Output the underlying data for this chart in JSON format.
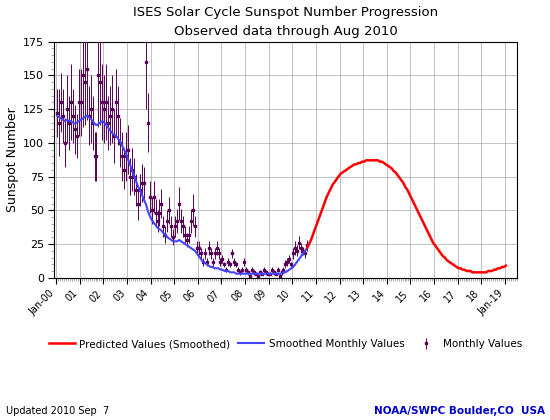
{
  "title": "ISES Solar Cycle Sunspot Number Progression",
  "subtitle": "Observed data through Aug 2010",
  "ylabel": "Sunspot Number",
  "footer_left": "Updated 2010 Sep  7",
  "footer_right": "NOAA/SWPC Boulder,CO  USA",
  "ylim": [
    0,
    175
  ],
  "yticks": [
    0,
    25,
    50,
    75,
    100,
    125,
    150,
    175
  ],
  "xlim": [
    1999.92,
    2019.5
  ],
  "background_color": "#ffffff",
  "smoothed_color": "#4444ff",
  "monthly_color": "#550055",
  "predicted_color": "#ff0000",
  "legend_entries": [
    "Smoothed Monthly Values",
    "Monthly Values",
    "Predicted Values (Smoothed)"
  ],
  "monthly_dates": [
    2000.042,
    2000.125,
    2000.208,
    2000.292,
    2000.375,
    2000.458,
    2000.542,
    2000.625,
    2000.708,
    2000.792,
    2000.875,
    2000.958,
    2001.042,
    2001.125,
    2001.208,
    2001.292,
    2001.375,
    2001.458,
    2001.542,
    2001.625,
    2001.708,
    2001.792,
    2001.875,
    2001.958,
    2002.042,
    2002.125,
    2002.208,
    2002.292,
    2002.375,
    2002.458,
    2002.542,
    2002.625,
    2002.708,
    2002.792,
    2002.875,
    2002.958,
    2003.042,
    2003.125,
    2003.208,
    2003.292,
    2003.375,
    2003.458,
    2003.542,
    2003.625,
    2003.708,
    2003.792,
    2003.875,
    2003.958,
    2004.042,
    2004.125,
    2004.208,
    2004.292,
    2004.375,
    2004.458,
    2004.542,
    2004.625,
    2004.708,
    2004.792,
    2004.875,
    2004.958,
    2005.042,
    2005.125,
    2005.208,
    2005.292,
    2005.375,
    2005.458,
    2005.542,
    2005.625,
    2005.708,
    2005.792,
    2005.875,
    2005.958,
    2006.042,
    2006.125,
    2006.208,
    2006.292,
    2006.375,
    2006.458,
    2006.542,
    2006.625,
    2006.708,
    2006.792,
    2006.875,
    2006.958,
    2007.042,
    2007.125,
    2007.208,
    2007.292,
    2007.375,
    2007.458,
    2007.542,
    2007.625,
    2007.708,
    2007.792,
    2007.875,
    2007.958,
    2008.042,
    2008.125,
    2008.208,
    2008.292,
    2008.375,
    2008.458,
    2008.542,
    2008.625,
    2008.708,
    2008.792,
    2008.875,
    2008.958,
    2009.042,
    2009.125,
    2009.208,
    2009.292,
    2009.375,
    2009.458,
    2009.542,
    2009.625,
    2009.708,
    2009.792,
    2009.875,
    2009.958,
    2010.042,
    2010.125,
    2010.208,
    2010.292,
    2010.375,
    2010.458,
    2010.542,
    2010.625
  ],
  "monthly_values": [
    122,
    115,
    130,
    120,
    100,
    125,
    115,
    130,
    120,
    110,
    105,
    130,
    130,
    150,
    145,
    155,
    120,
    125,
    115,
    90,
    90,
    150,
    145,
    130,
    125,
    130,
    115,
    120,
    125,
    105,
    130,
    120,
    100,
    90,
    80,
    90,
    95,
    75,
    80,
    75,
    65,
    55,
    65,
    70,
    70,
    160,
    115,
    60,
    50,
    60,
    48,
    42,
    48,
    55,
    38,
    32,
    42,
    50,
    38,
    30,
    38,
    42,
    55,
    42,
    38,
    32,
    28,
    32,
    42,
    50,
    38,
    22,
    22,
    18,
    12,
    18,
    12,
    22,
    18,
    12,
    18,
    22,
    18,
    12,
    14,
    10,
    6,
    12,
    10,
    18,
    12,
    10,
    6,
    4,
    6,
    12,
    6,
    4,
    1,
    6,
    4,
    3,
    1,
    4,
    3,
    6,
    4,
    3,
    3,
    6,
    4,
    3,
    6,
    1,
    4,
    6,
    10,
    12,
    14,
    10,
    18,
    22,
    20,
    26,
    22,
    20,
    18,
    24
  ],
  "monthly_errors": [
    18,
    25,
    22,
    20,
    18,
    25,
    20,
    28,
    20,
    18,
    16,
    25,
    25,
    38,
    32,
    38,
    22,
    25,
    20,
    18,
    18,
    38,
    32,
    28,
    25,
    28,
    20,
    22,
    25,
    20,
    25,
    22,
    18,
    18,
    14,
    18,
    18,
    14,
    16,
    14,
    12,
    12,
    12,
    14,
    12,
    35,
    22,
    12,
    10,
    12,
    10,
    8,
    10,
    11,
    8,
    6,
    8,
    10,
    8,
    6,
    8,
    9,
    12,
    9,
    8,
    6,
    5,
    6,
    9,
    12,
    8,
    5,
    5,
    4,
    3,
    4,
    3,
    5,
    4,
    3,
    4,
    5,
    4,
    3,
    3,
    2,
    2,
    3,
    2,
    3,
    3,
    2,
    2,
    2,
    2,
    3,
    2,
    2,
    1,
    2,
    2,
    1,
    1,
    2,
    1,
    2,
    2,
    1,
    1,
    2,
    2,
    1,
    2,
    1,
    2,
    2,
    3,
    3,
    3,
    2,
    4,
    5,
    4,
    5,
    4,
    3,
    3,
    4
  ],
  "smoothed_dates": [
    2000.042,
    2000.125,
    2000.208,
    2000.292,
    2000.375,
    2000.458,
    2000.542,
    2000.625,
    2000.708,
    2000.792,
    2000.875,
    2000.958,
    2001.042,
    2001.125,
    2001.208,
    2001.292,
    2001.375,
    2001.458,
    2001.542,
    2001.625,
    2001.708,
    2001.792,
    2001.875,
    2001.958,
    2002.042,
    2002.125,
    2002.208,
    2002.292,
    2002.375,
    2002.458,
    2002.542,
    2002.625,
    2002.708,
    2002.792,
    2002.875,
    2002.958,
    2003.042,
    2003.125,
    2003.208,
    2003.292,
    2003.375,
    2003.458,
    2003.542,
    2003.625,
    2003.708,
    2003.792,
    2003.875,
    2003.958,
    2004.042,
    2004.125,
    2004.208,
    2004.292,
    2004.375,
    2004.458,
    2004.542,
    2004.625,
    2004.708,
    2004.792,
    2004.875,
    2004.958,
    2005.042,
    2005.125,
    2005.208,
    2005.292,
    2005.375,
    2005.458,
    2005.542,
    2005.625,
    2005.708,
    2005.792,
    2005.875,
    2005.958,
    2006.042,
    2006.125,
    2006.208,
    2006.292,
    2006.375,
    2006.458,
    2006.542,
    2006.625,
    2006.708,
    2006.792,
    2006.875,
    2006.958,
    2007.042,
    2007.125,
    2007.208,
    2007.292,
    2007.375,
    2007.458,
    2007.542,
    2007.625,
    2007.708,
    2007.792,
    2007.875,
    2007.958,
    2008.042,
    2008.125,
    2008.208,
    2008.292,
    2008.375,
    2008.458,
    2008.542,
    2008.625,
    2008.708,
    2008.792,
    2008.875,
    2008.958,
    2009.042,
    2009.125,
    2009.208,
    2009.292,
    2009.375,
    2009.458,
    2009.542,
    2009.625,
    2009.708,
    2009.792,
    2009.875,
    2009.958,
    2010.042,
    2010.125,
    2010.208,
    2010.292,
    2010.375,
    2010.458,
    2010.542,
    2010.625
  ],
  "smoothed_values": [
    120,
    119,
    118,
    117,
    116,
    117,
    116,
    116,
    115,
    114,
    115,
    116,
    117,
    118,
    119,
    120,
    119,
    118,
    116,
    114,
    113,
    114,
    115,
    116,
    115,
    113,
    111,
    109,
    107,
    106,
    105,
    103,
    101,
    98,
    95,
    92,
    88,
    84,
    80,
    76,
    72,
    68,
    65,
    62,
    58,
    55,
    50,
    46,
    43,
    41,
    39,
    37,
    36,
    35,
    33,
    32,
    30,
    29,
    28,
    27,
    27,
    27,
    28,
    27,
    26,
    25,
    24,
    23,
    22,
    21,
    20,
    18,
    16,
    14,
    12,
    11,
    10,
    9,
    8,
    8,
    7,
    7,
    7,
    6,
    6,
    5,
    5,
    5,
    4,
    4,
    4,
    3,
    3,
    3,
    3,
    3,
    3,
    3,
    3,
    3,
    3,
    3,
    3,
    3,
    3,
    3,
    3,
    3,
    3,
    3,
    3,
    3,
    3,
    3,
    3,
    4,
    4,
    5,
    6,
    7,
    8,
    10,
    12,
    14,
    16,
    18,
    20,
    22
  ],
  "predicted_dates": [
    2010.625,
    2010.708,
    2010.792,
    2010.875,
    2010.958,
    2011.042,
    2011.125,
    2011.208,
    2011.292,
    2011.375,
    2011.458,
    2011.542,
    2011.625,
    2011.708,
    2011.792,
    2011.875,
    2011.958,
    2012.042,
    2012.125,
    2012.208,
    2012.292,
    2012.375,
    2012.458,
    2012.542,
    2012.625,
    2012.708,
    2012.792,
    2012.875,
    2012.958,
    2013.042,
    2013.125,
    2013.208,
    2013.292,
    2013.375,
    2013.458,
    2013.542,
    2013.625,
    2013.708,
    2013.792,
    2013.875,
    2013.958,
    2014.042,
    2014.125,
    2014.208,
    2014.292,
    2014.375,
    2014.458,
    2014.542,
    2014.625,
    2014.708,
    2014.792,
    2014.875,
    2014.958,
    2015.042,
    2015.125,
    2015.208,
    2015.292,
    2015.375,
    2015.458,
    2015.542,
    2015.625,
    2015.708,
    2015.792,
    2015.875,
    2015.958,
    2016.042,
    2016.125,
    2016.208,
    2016.292,
    2016.375,
    2016.458,
    2016.542,
    2016.625,
    2016.708,
    2016.792,
    2016.875,
    2016.958,
    2017.042,
    2017.125,
    2017.208,
    2017.292,
    2017.375,
    2017.458,
    2017.542,
    2017.625,
    2017.708,
    2017.792,
    2017.875,
    2017.958,
    2018.042,
    2018.125,
    2018.208,
    2018.292,
    2018.375,
    2018.458,
    2018.542,
    2018.625,
    2018.708,
    2018.792,
    2018.875,
    2018.958,
    2019.042
  ],
  "predicted_values": [
    22,
    25,
    28,
    32,
    36,
    40,
    44,
    48,
    52,
    56,
    60,
    63,
    66,
    69,
    71,
    73,
    75,
    77,
    78,
    79,
    80,
    81,
    82,
    83,
    84,
    84,
    85,
    85,
    86,
    86,
    87,
    87,
    87,
    87,
    87,
    87,
    87,
    86,
    86,
    85,
    84,
    83,
    82,
    81,
    79,
    78,
    76,
    74,
    72,
    70,
    67,
    65,
    62,
    59,
    56,
    53,
    50,
    47,
    44,
    41,
    38,
    35,
    32,
    29,
    26,
    24,
    22,
    20,
    18,
    16,
    15,
    13,
    12,
    11,
    10,
    9,
    8,
    7,
    7,
    6,
    6,
    5,
    5,
    5,
    4,
    4,
    4,
    4,
    4,
    4,
    4,
    4,
    5,
    5,
    5,
    6,
    6,
    7,
    7,
    8,
    8,
    9
  ],
  "xtick_positions": [
    2000,
    2001,
    2002,
    2003,
    2004,
    2005,
    2006,
    2007,
    2008,
    2009,
    2010,
    2011,
    2012,
    2013,
    2014,
    2015,
    2016,
    2017,
    2018,
    2019
  ],
  "xtick_labels": [
    "Jan-00",
    "01",
    "02",
    "03",
    "04",
    "05",
    "06",
    "07",
    "08",
    "09",
    "10",
    "11",
    "12",
    "13",
    "14",
    "15",
    "16",
    "17",
    "18",
    "Jan-19"
  ]
}
